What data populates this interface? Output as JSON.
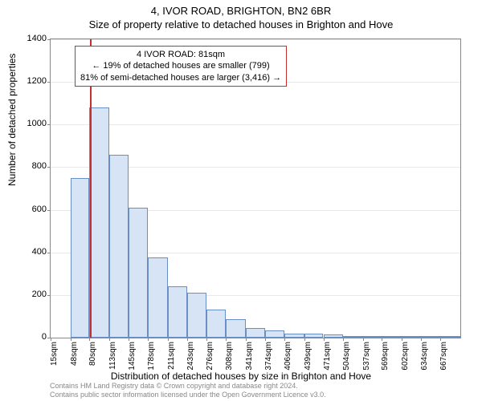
{
  "title_main": "4, IVOR ROAD, BRIGHTON, BN2 6BR",
  "title_sub": "Size of property relative to detached houses in Brighton and Hove",
  "y_axis_label": "Number of detached properties",
  "x_axis_label": "Distribution of detached houses by size in Brighton and Hove",
  "annotation": {
    "line1": "4 IVOR ROAD: 81sqm",
    "line2": "← 19% of detached houses are smaller (799)",
    "line3": "81% of semi-detached houses are larger (3,416) →"
  },
  "footer_line1": "Contains HM Land Registry data © Crown copyright and database right 2024.",
  "footer_line2": "Contains public sector information licensed under the Open Government Licence v3.0.",
  "chart": {
    "type": "histogram",
    "background_color": "#ffffff",
    "grid_color": "#e8e8e8",
    "axis_color": "#888888",
    "bar_fill": "#d6e4f5",
    "bar_border": "#6a8fc5",
    "marker_color": "#c43030",
    "marker_x_value": 81,
    "ylim": [
      0,
      1400
    ],
    "ytick_step": 200,
    "yticks": [
      0,
      200,
      400,
      600,
      800,
      1000,
      1200,
      1400
    ],
    "x_range": [
      15,
      700
    ],
    "x_tick_values": [
      15,
      48,
      80,
      113,
      145,
      178,
      211,
      243,
      276,
      308,
      341,
      374,
      406,
      439,
      471,
      504,
      537,
      569,
      602,
      634,
      667
    ],
    "x_tick_labels": [
      "15sqm",
      "48sqm",
      "80sqm",
      "113sqm",
      "145sqm",
      "178sqm",
      "211sqm",
      "243sqm",
      "276sqm",
      "308sqm",
      "341sqm",
      "374sqm",
      "406sqm",
      "439sqm",
      "471sqm",
      "504sqm",
      "537sqm",
      "569sqm",
      "602sqm",
      "634sqm",
      "667sqm"
    ],
    "bars": [
      {
        "x_left": 48,
        "x_right": 80,
        "value": 750
      },
      {
        "x_left": 80,
        "x_right": 113,
        "value": 1080
      },
      {
        "x_left": 113,
        "x_right": 145,
        "value": 860
      },
      {
        "x_left": 145,
        "x_right": 178,
        "value": 610
      },
      {
        "x_left": 178,
        "x_right": 211,
        "value": 375
      },
      {
        "x_left": 211,
        "x_right": 243,
        "value": 240
      },
      {
        "x_left": 243,
        "x_right": 276,
        "value": 210
      },
      {
        "x_left": 276,
        "x_right": 308,
        "value": 130
      },
      {
        "x_left": 308,
        "x_right": 341,
        "value": 85
      },
      {
        "x_left": 341,
        "x_right": 374,
        "value": 45
      },
      {
        "x_left": 374,
        "x_right": 406,
        "value": 35
      },
      {
        "x_left": 406,
        "x_right": 439,
        "value": 20
      },
      {
        "x_left": 439,
        "x_right": 471,
        "value": 18
      },
      {
        "x_left": 471,
        "x_right": 504,
        "value": 15
      },
      {
        "x_left": 504,
        "x_right": 537,
        "value": 8
      },
      {
        "x_left": 537,
        "x_right": 569,
        "value": 5
      },
      {
        "x_left": 569,
        "x_right": 602,
        "value": 5
      },
      {
        "x_left": 602,
        "x_right": 634,
        "value": 4
      },
      {
        "x_left": 634,
        "x_right": 667,
        "value": 3
      },
      {
        "x_left": 667,
        "x_right": 700,
        "value": 3
      }
    ],
    "title_fontsize": 13,
    "label_fontsize": 12,
    "tick_fontsize": 10
  }
}
